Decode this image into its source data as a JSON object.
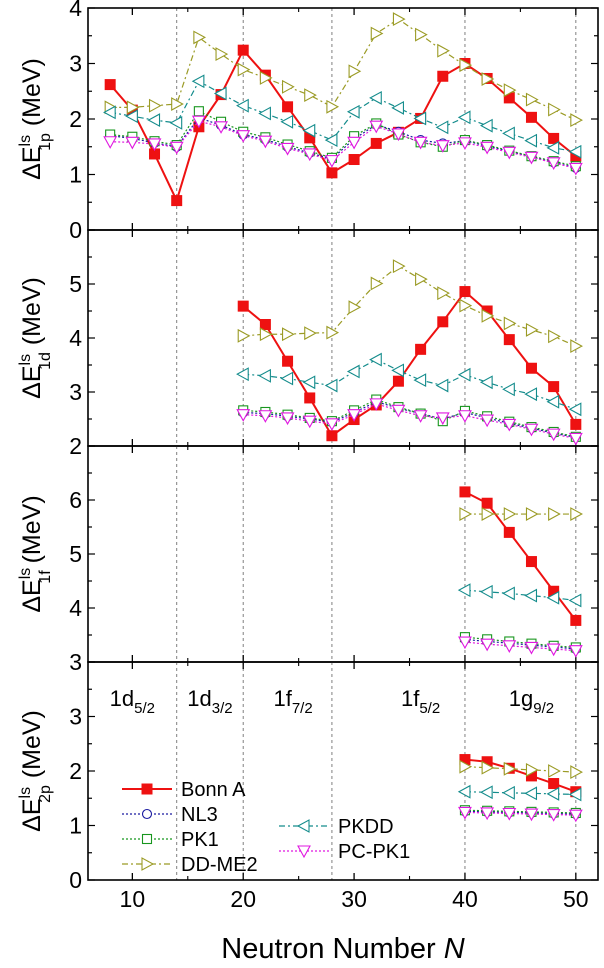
{
  "chart_data": {
    "type": "line",
    "xlabel": "Neutron Number N",
    "xlabel_main": "Neutron Number",
    "xlabel_var": "N",
    "xlim": [
      6,
      52
    ],
    "xticks": [
      10,
      20,
      30,
      40,
      50
    ],
    "grid": false,
    "shell_lines": [
      14,
      20,
      28,
      40,
      50
    ],
    "shell_labels": [
      {
        "x": 10,
        "main": "1d",
        "sub": "5/2"
      },
      {
        "x": 17,
        "main": "1d",
        "sub": "3/2"
      },
      {
        "x": 24.5,
        "main": "1f",
        "sub": "7/2"
      },
      {
        "x": 36,
        "main": "1f",
        "sub": "5/2"
      },
      {
        "x": 46,
        "main": "1g",
        "sub": "9/2"
      }
    ],
    "legend_position": "lower-left of bottom panel",
    "panels": [
      {
        "id": "1p",
        "ylabel": "ΔE_1p^ls (MeV)",
        "ylabel_main": "ΔE",
        "ylabel_sup": "ls",
        "ylabel_sub": "1p",
        "ylabel_unit": "(MeV)",
        "ylim": [
          0,
          4
        ],
        "yticks": [
          0,
          1,
          2,
          3,
          4
        ],
        "series": [
          {
            "name": "Bonn A",
            "x": [
              8,
              10,
              12,
              14,
              16,
              18,
              20,
              22,
              24,
              26,
              28,
              30,
              32,
              34,
              36,
              38,
              40,
              42,
              44,
              46,
              48,
              50
            ],
            "y": [
              2.62,
              2.16,
              1.37,
              0.53,
              1.86,
              2.44,
              3.24,
              2.79,
              2.22,
              1.66,
              1.03,
              1.27,
              1.56,
              1.76,
              2.01,
              2.77,
              3.0,
              2.73,
              2.38,
              2.03,
              1.65,
              1.33
            ]
          },
          {
            "name": "NL3",
            "x": [
              8,
              10,
              12,
              14,
              16,
              18,
              20,
              22,
              24,
              26,
              28,
              30,
              32,
              34,
              36,
              38,
              40,
              42,
              44,
              46,
              48,
              50
            ],
            "y": [
              1.7,
              1.65,
              1.57,
              1.5,
              2.02,
              1.89,
              1.72,
              1.63,
              1.5,
              1.39,
              1.28,
              1.64,
              1.9,
              1.77,
              1.62,
              1.56,
              1.61,
              1.51,
              1.42,
              1.32,
              1.22,
              1.12
            ]
          },
          {
            "name": "PK1",
            "x": [
              8,
              10,
              12,
              14,
              16,
              18,
              20,
              22,
              24,
              26,
              28,
              30,
              32,
              34,
              36,
              38,
              40,
              42,
              44,
              46,
              48,
              50
            ],
            "y": [
              1.72,
              1.68,
              1.6,
              1.53,
              2.14,
              1.95,
              1.77,
              1.67,
              1.54,
              1.42,
              1.3,
              1.69,
              1.92,
              1.72,
              1.58,
              1.5,
              1.62,
              1.53,
              1.43,
              1.33,
              1.24,
              1.15
            ]
          },
          {
            "name": "DD-ME2",
            "x": [
              8,
              10,
              12,
              14,
              16,
              18,
              20,
              22,
              24,
              26,
              28,
              30,
              32,
              34,
              36,
              38,
              40,
              42,
              44,
              46,
              48,
              50
            ],
            "y": [
              2.21,
              2.21,
              2.24,
              2.27,
              3.47,
              3.17,
              2.89,
              2.74,
              2.58,
              2.43,
              2.22,
              2.86,
              3.54,
              3.8,
              3.52,
              3.23,
              2.97,
              2.72,
              2.52,
              2.35,
              2.17,
              1.98
            ]
          },
          {
            "name": "PKDD",
            "x": [
              8,
              10,
              12,
              14,
              16,
              18,
              20,
              22,
              24,
              26,
              28,
              30,
              32,
              34,
              36,
              38,
              40,
              42,
              44,
              46,
              48,
              50
            ],
            "y": [
              2.12,
              2.05,
              1.98,
              1.93,
              2.68,
              2.46,
              2.24,
              2.1,
              1.95,
              1.79,
              1.62,
              2.13,
              2.38,
              2.2,
              2.01,
              1.85,
              2.03,
              1.88,
              1.74,
              1.61,
              1.48,
              1.41
            ]
          },
          {
            "name": "PC-PK1",
            "x": [
              8,
              10,
              12,
              14,
              16,
              18,
              20,
              22,
              24,
              26,
              28,
              30,
              32,
              34,
              36,
              38,
              40,
              42,
              44,
              46,
              48,
              50
            ],
            "y": [
              1.59,
              1.58,
              1.55,
              1.49,
              1.96,
              1.86,
              1.7,
              1.6,
              1.47,
              1.37,
              1.25,
              1.58,
              1.87,
              1.73,
              1.58,
              1.52,
              1.57,
              1.49,
              1.4,
              1.31,
              1.21,
              1.11
            ]
          }
        ]
      },
      {
        "id": "1d",
        "ylabel": "ΔE_1d^ls (MeV)",
        "ylabel_main": "ΔE",
        "ylabel_sup": "ls",
        "ylabel_sub": "1d",
        "ylabel_unit": "(MeV)",
        "ylim": [
          2,
          6
        ],
        "yticks": [
          2,
          3,
          4,
          5
        ],
        "series": [
          {
            "name": "Bonn A",
            "x": [
              20,
              22,
              24,
              26,
              28,
              30,
              32,
              34,
              36,
              38,
              40,
              42,
              44,
              46,
              48,
              50
            ],
            "y": [
              4.59,
              4.25,
              3.57,
              2.89,
              2.19,
              2.49,
              2.76,
              3.2,
              3.79,
              4.3,
              4.86,
              4.5,
              3.97,
              3.44,
              3.1,
              2.4
            ]
          },
          {
            "name": "NL3",
            "x": [
              20,
              22,
              24,
              26,
              28,
              30,
              32,
              34,
              36,
              38,
              40,
              42,
              44,
              46,
              48,
              50
            ],
            "y": [
              2.62,
              2.6,
              2.55,
              2.5,
              2.44,
              2.62,
              2.82,
              2.7,
              2.6,
              2.5,
              2.62,
              2.52,
              2.42,
              2.33,
              2.24,
              2.16
            ]
          },
          {
            "name": "PK1",
            "x": [
              20,
              22,
              24,
              26,
              28,
              30,
              32,
              34,
              36,
              38,
              40,
              42,
              44,
              46,
              48,
              50
            ],
            "y": [
              2.66,
              2.63,
              2.58,
              2.52,
              2.46,
              2.66,
              2.86,
              2.72,
              2.6,
              2.46,
              2.65,
              2.55,
              2.45,
              2.35,
              2.26,
              2.17
            ]
          },
          {
            "name": "DD-ME2",
            "x": [
              20,
              22,
              24,
              26,
              28,
              30,
              32,
              34,
              36,
              38,
              40,
              42,
              44,
              46,
              48,
              50
            ],
            "y": [
              4.04,
              4.07,
              4.07,
              4.09,
              4.1,
              4.57,
              5.01,
              5.33,
              5.09,
              4.83,
              4.6,
              4.41,
              4.27,
              4.15,
              4.03,
              3.85
            ]
          },
          {
            "name": "PKDD",
            "x": [
              20,
              22,
              24,
              26,
              28,
              30,
              32,
              34,
              36,
              38,
              40,
              42,
              44,
              46,
              48,
              50
            ],
            "y": [
              3.33,
              3.3,
              3.25,
              3.18,
              3.12,
              3.38,
              3.6,
              3.4,
              3.22,
              3.12,
              3.32,
              3.18,
              3.05,
              2.96,
              2.82,
              2.68
            ]
          },
          {
            "name": "PC-PK1",
            "x": [
              20,
              22,
              24,
              26,
              28,
              30,
              32,
              34,
              36,
              38,
              40,
              42,
              44,
              46,
              48,
              50
            ],
            "y": [
              2.58,
              2.56,
              2.52,
              2.46,
              2.41,
              2.58,
              2.78,
              2.66,
              2.56,
              2.52,
              2.56,
              2.48,
              2.4,
              2.31,
              2.22,
              2.14
            ]
          }
        ]
      },
      {
        "id": "1f",
        "ylabel": "ΔE_1f^ls (MeV)",
        "ylabel_main": "ΔE",
        "ylabel_sup": "ls",
        "ylabel_sub": "1f",
        "ylabel_unit": "(MeV)",
        "ylim": [
          3,
          7
        ],
        "yticks": [
          3,
          4,
          5,
          6
        ],
        "series": [
          {
            "name": "Bonn A",
            "x": [
              40,
              42,
              44,
              46,
              48,
              50
            ],
            "y": [
              6.15,
              5.94,
              5.4,
              4.86,
              4.31,
              3.77
            ]
          },
          {
            "name": "NL3",
            "x": [
              40,
              42,
              44,
              46,
              48,
              50
            ],
            "y": [
              3.42,
              3.38,
              3.35,
              3.31,
              3.28,
              3.24
            ]
          },
          {
            "name": "PK1",
            "x": [
              40,
              42,
              44,
              46,
              48,
              50
            ],
            "y": [
              3.46,
              3.42,
              3.38,
              3.34,
              3.3,
              3.27
            ]
          },
          {
            "name": "DD-ME2",
            "x": [
              40,
              42,
              44,
              46,
              48,
              50
            ],
            "y": [
              5.74,
              5.74,
              5.74,
              5.74,
              5.74,
              5.74
            ]
          },
          {
            "name": "PKDD",
            "x": [
              40,
              42,
              44,
              46,
              48,
              50
            ],
            "y": [
              4.33,
              4.3,
              4.27,
              4.23,
              4.19,
              4.14
            ]
          },
          {
            "name": "PC-PK1",
            "x": [
              40,
              42,
              44,
              46,
              48,
              50
            ],
            "y": [
              3.37,
              3.33,
              3.3,
              3.27,
              3.24,
              3.21
            ]
          }
        ]
      },
      {
        "id": "2p",
        "ylabel": "ΔE_2p^ls (MeV)",
        "ylabel_main": "ΔE",
        "ylabel_sup": "ls",
        "ylabel_sub": "2p",
        "ylabel_unit": "(MeV)",
        "ylim": [
          0,
          4
        ],
        "yticks": [
          0,
          1,
          2,
          3
        ],
        "series": [
          {
            "name": "Bonn A",
            "x": [
              40,
              42,
              44,
              46,
              48,
              50
            ],
            "y": [
              2.21,
              2.17,
              2.05,
              1.91,
              1.77,
              1.62
            ]
          },
          {
            "name": "NL3",
            "x": [
              40,
              42,
              44,
              46,
              48,
              50
            ],
            "y": [
              1.26,
              1.25,
              1.24,
              1.23,
              1.22,
              1.21
            ]
          },
          {
            "name": "PK1",
            "x": [
              40,
              42,
              44,
              46,
              48,
              50
            ],
            "y": [
              1.28,
              1.27,
              1.26,
              1.25,
              1.24,
              1.23
            ]
          },
          {
            "name": "DD-ME2",
            "x": [
              40,
              42,
              44,
              46,
              48,
              50
            ],
            "y": [
              2.08,
              2.06,
              2.04,
              2.02,
              2.0,
              1.98
            ]
          },
          {
            "name": "PKDD",
            "x": [
              40,
              42,
              44,
              46,
              48,
              50
            ],
            "y": [
              1.62,
              1.61,
              1.6,
              1.59,
              1.58,
              1.57
            ]
          },
          {
            "name": "PC-PK1",
            "x": [
              40,
              42,
              44,
              46,
              48,
              50
            ],
            "y": [
              1.24,
              1.23,
              1.22,
              1.21,
              1.2,
              1.19
            ]
          }
        ]
      }
    ],
    "styles": [
      {
        "name": "Bonn A",
        "color": "#ee1111",
        "marker": "square-filled",
        "line": "solid"
      },
      {
        "name": "NL3",
        "color": "#1a1aa0",
        "marker": "circle-open",
        "line": "dotted"
      },
      {
        "name": "PK1",
        "color": "#18961e",
        "marker": "square-open",
        "line": "dotted"
      },
      {
        "name": "DD-ME2",
        "color": "#9b9b25",
        "marker": "triangle-right-open",
        "line": "dashdot"
      },
      {
        "name": "PKDD",
        "color": "#148c8c",
        "marker": "triangle-left-open",
        "line": "dashdot"
      },
      {
        "name": "PC-PK1",
        "color": "#e018e0",
        "marker": "triangle-down-open",
        "line": "dotted"
      }
    ]
  }
}
